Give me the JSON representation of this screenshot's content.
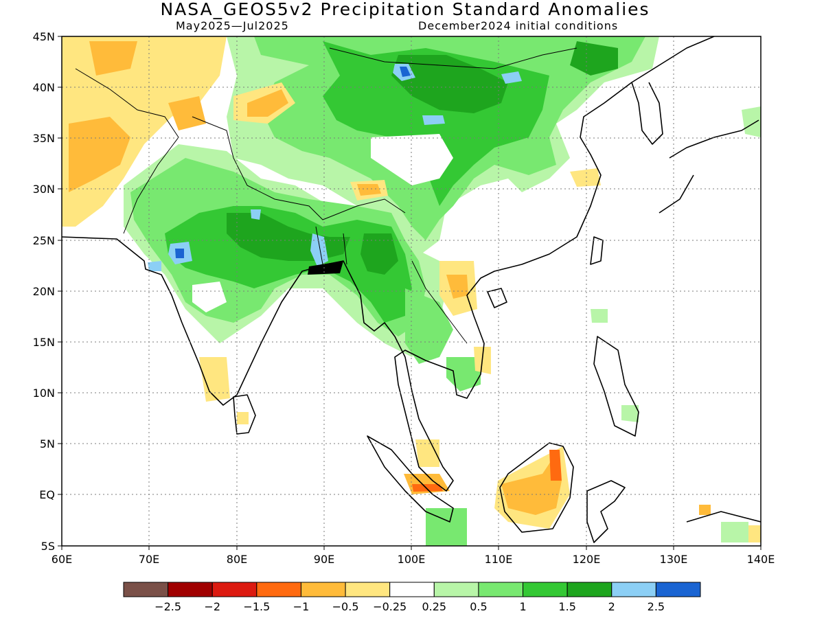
{
  "title": "NASA_GEOS5v2 Precipitation Standard Anomalies",
  "subtitle_left": "May2025—Jul2025",
  "subtitle_right": "December2024 initial conditions",
  "map": {
    "extent": {
      "lon": [
        60,
        140
      ],
      "lat": [
        -5,
        45
      ]
    },
    "lon_labels": [
      "60E",
      "70E",
      "80E",
      "90E",
      "100E",
      "110E",
      "120E",
      "130E",
      "140E"
    ],
    "lat_labels": [
      "45N",
      "40N",
      "35N",
      "30N",
      "25N",
      "20N",
      "15N",
      "10N",
      "5N",
      "EQ",
      "5S"
    ],
    "gridlines": "dotted",
    "land_outline_color": "#000000"
  },
  "colorbar": {
    "colors": [
      "#7a5048",
      "#a00000",
      "#dc1a10",
      "#ff6a10",
      "#ffbb3a",
      "#ffe680",
      "#ffffff",
      "#b8f5a8",
      "#78e870",
      "#34c834",
      "#1ea51e",
      "#8ccff5",
      "#1a64d2"
    ],
    "labels": [
      "−2.5",
      "−2",
      "−1.5",
      "−1",
      "−0.5",
      "−0.25",
      "0.25",
      "0.5",
      "1",
      "1.5",
      "2",
      "2.5"
    ]
  }
}
